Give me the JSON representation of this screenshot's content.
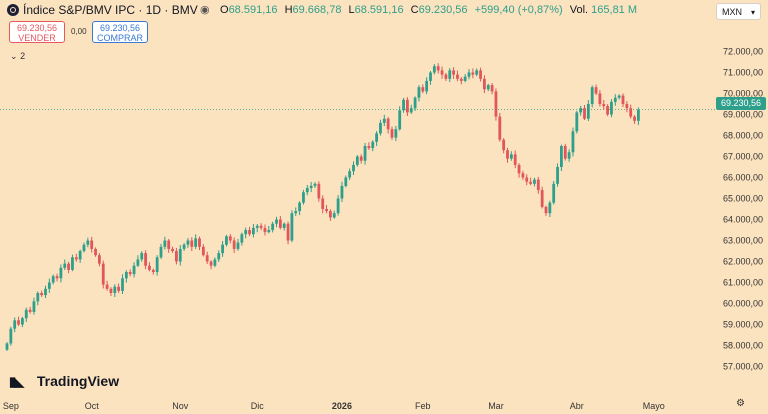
{
  "header": {
    "symbol_title": "Índice S&P/BMV IPC · 1D · BMV",
    "ohlc": [
      {
        "key": "O",
        "value": "68.591,16"
      },
      {
        "key": "H",
        "value": "69.668,78"
      },
      {
        "key": "L",
        "value": "68.591,16"
      },
      {
        "key": "C",
        "value": "69.230,56"
      }
    ],
    "change": "+599,40 (+0,87%)",
    "volume_key": "Vol.",
    "volume_value": "165,81 M",
    "currency": "MXN"
  },
  "trade": {
    "sell_price": "69.230,56",
    "sell_label": "VENDER",
    "spread": "0,00",
    "buy_price": "69.230,56",
    "buy_label": "COMPRAR"
  },
  "indicators_toggle": "2",
  "last_price_tag": "69.230,56",
  "brand": "TradingView",
  "colors": {
    "background": "#fce3c0",
    "up": "#2d9f8a",
    "down": "#e0565b",
    "last_price_line": "#2d9f8a"
  },
  "chart_data": {
    "type": "candlestick",
    "y_ticks": [
      72000,
      71000,
      70000,
      69000,
      68000,
      67000,
      66000,
      65000,
      64000,
      63000,
      62000,
      61000,
      60000,
      59000,
      58000,
      57000
    ],
    "y_tick_labels": [
      "72.000,00",
      "71.000,00",
      "70.000,00",
      "69.000,00",
      "68.000,00",
      "67.000,00",
      "66.000,00",
      "65.000,00",
      "64.000,00",
      "63.000,00",
      "62.000,00",
      "61.000,00",
      "60.000,00",
      "59.000,00",
      "58.000,00",
      "57.000,00"
    ],
    "ylim": [
      56500,
      72500
    ],
    "x_labels": [
      {
        "label": "Sep",
        "index": 1,
        "bold": false
      },
      {
        "label": "Oct",
        "index": 22,
        "bold": false
      },
      {
        "label": "Nov",
        "index": 45,
        "bold": false
      },
      {
        "label": "Dic",
        "index": 65,
        "bold": false
      },
      {
        "label": "2026",
        "index": 87,
        "bold": true
      },
      {
        "label": "Feb",
        "index": 108,
        "bold": false
      },
      {
        "label": "Mar",
        "index": 127,
        "bold": false
      },
      {
        "label": "Abr",
        "index": 148,
        "bold": false
      },
      {
        "label": "Mayo",
        "index": 168,
        "bold": false
      }
    ],
    "last_close": 69230.56,
    "closes": [
      58100,
      58800,
      59200,
      59000,
      59300,
      59700,
      59600,
      60100,
      60500,
      60400,
      60700,
      61000,
      61300,
      61200,
      61700,
      61900,
      61600,
      62200,
      62100,
      62500,
      62800,
      63000,
      62600,
      62300,
      61900,
      60900,
      60700,
      60500,
      60800,
      60600,
      61200,
      61500,
      61400,
      61800,
      62100,
      62400,
      61800,
      61600,
      61500,
      62200,
      62700,
      63000,
      62600,
      62500,
      62000,
      62600,
      62800,
      63000,
      62700,
      63100,
      62700,
      62300,
      62000,
      61800,
      62100,
      62400,
      62800,
      63200,
      63000,
      62600,
      62900,
      63300,
      63500,
      63300,
      63600,
      63700,
      63600,
      63400,
      63500,
      63800,
      64000,
      63600,
      63800,
      63000,
      64300,
      64400,
      64800,
      65300,
      65500,
      65600,
      65700,
      65000,
      64500,
      64400,
      64100,
      64300,
      65000,
      65600,
      66000,
      66300,
      66600,
      67000,
      66800,
      67500,
      67400,
      67700,
      68100,
      68600,
      68800,
      68300,
      67900,
      68300,
      69200,
      69700,
      69100,
      69300,
      69800,
      70300,
      70100,
      70600,
      71000,
      71300,
      71100,
      70900,
      70700,
      71100,
      70900,
      70700,
      70600,
      70800,
      71000,
      70900,
      71100,
      70700,
      70200,
      70400,
      70100,
      68900,
      67800,
      67300,
      66900,
      67100,
      66600,
      66200,
      66000,
      65800,
      65700,
      65900,
      65400,
      64600,
      64300,
      64800,
      65700,
      66500,
      67500,
      66900,
      67200,
      68200,
      69100,
      69300,
      68800,
      69500,
      70300,
      70000,
      69500,
      69400,
      69000,
      69600,
      69800,
      69900,
      69500,
      69300,
      68900,
      68700,
      69230.56
    ]
  }
}
